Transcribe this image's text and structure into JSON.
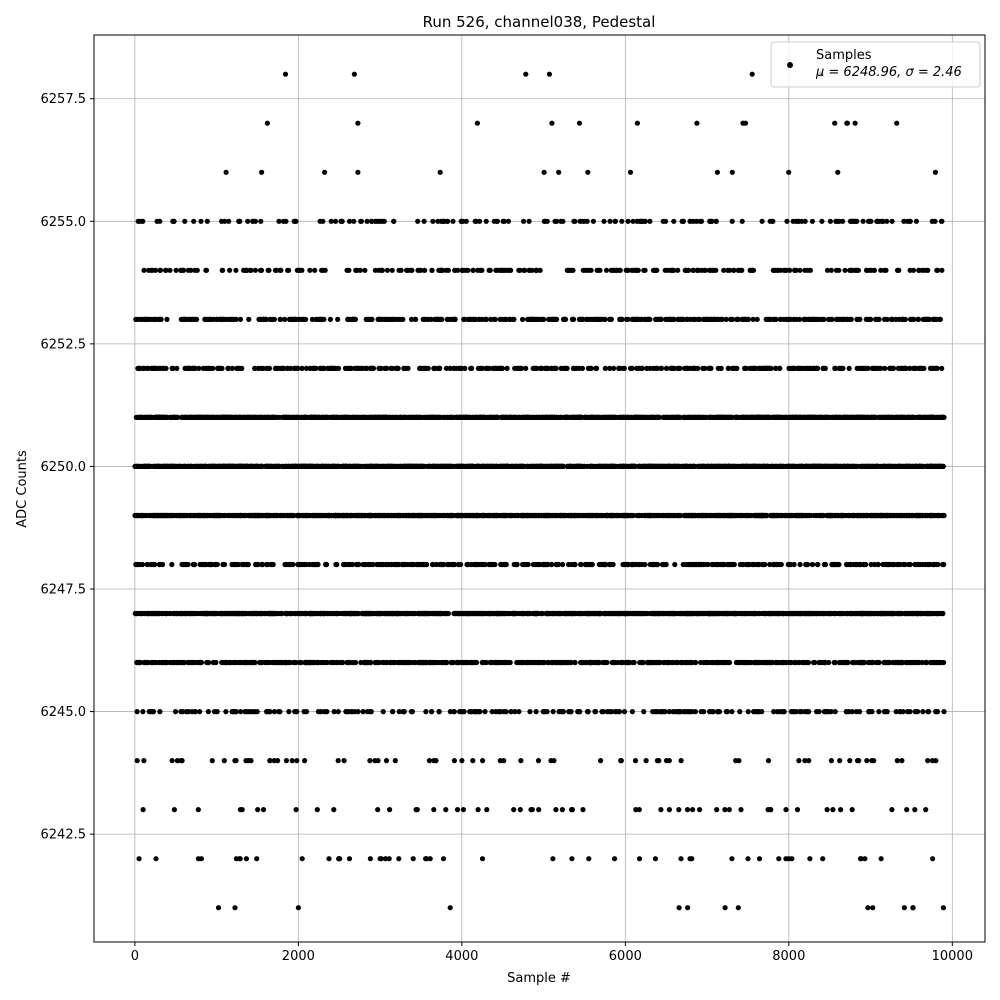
{
  "chart_data": {
    "type": "scatter",
    "title": "Run 526, channel038, Pedestal",
    "xlabel": "Sample #",
    "ylabel": "ADC Counts",
    "xlim": [
      -500,
      10400
    ],
    "ylim": [
      6240.3,
      6258.8
    ],
    "xticks": [
      0,
      2000,
      4000,
      6000,
      8000,
      10000
    ],
    "xtick_labels": [
      "0",
      "2000",
      "4000",
      "6000",
      "8000",
      "10000"
    ],
    "yticks": [
      6242.5,
      6245.0,
      6247.5,
      6250.0,
      6252.5,
      6255.0,
      6257.5
    ],
    "ytick_labels": [
      "6242.5",
      "6245.0",
      "6247.5",
      "6250.0",
      "6252.5",
      "6255.0",
      "6257.5"
    ],
    "grid": true,
    "legend_position": "top-right",
    "marker_color": "#000000",
    "series": [
      {
        "name": "Samples",
        "stats_label": "μ = 6248.96, σ = 2.46",
        "x_range": [
          0,
          9900
        ],
        "level_counts": {
          "6258": 6,
          "6257": 14,
          "6256": 14,
          "6255": 180,
          "6254": 260,
          "6253": 420,
          "6252": 380,
          "6251": 1400,
          "6250": 1500,
          "6249": 1500,
          "6248": 420,
          "6247": 1400,
          "6246": 700,
          "6245": 240,
          "6244": 70,
          "6243": 55,
          "6242": 50,
          "6241": 14
        }
      }
    ]
  }
}
